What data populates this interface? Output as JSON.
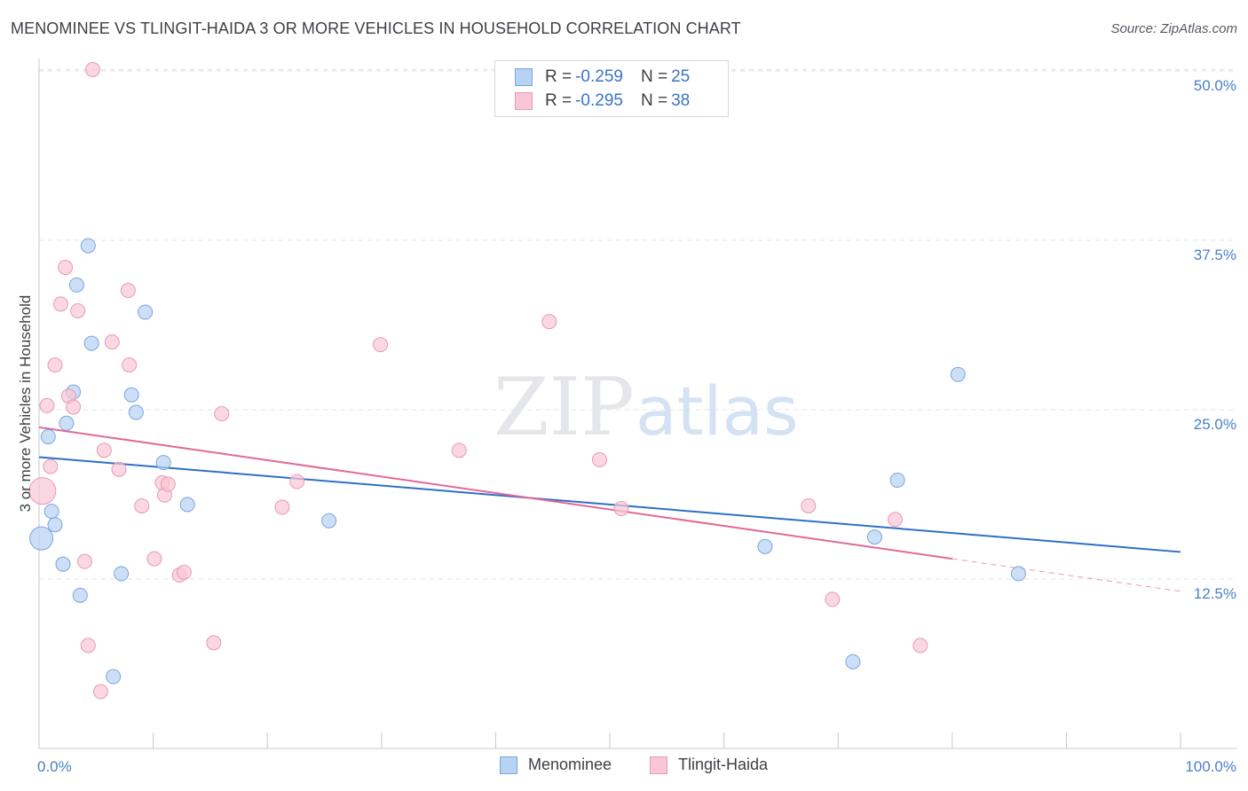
{
  "title": "MENOMINEE VS TLINGIT-HAIDA 3 OR MORE VEHICLES IN HOUSEHOLD CORRELATION CHART",
  "source": "Source: ZipAtlas.com",
  "watermark": {
    "zip": "ZIP",
    "atlas": "atlas"
  },
  "colors": {
    "blue_fill": "#b8d2f4",
    "blue_stroke": "#7aa6dc",
    "blue_line": "#2f6fc8",
    "pink_fill": "#f8c6d5",
    "pink_stroke": "#e99ab2",
    "pink_line": "#e06a96",
    "grid": "#dfe3e8",
    "axis_text": "#4a7fc8"
  },
  "legend": {
    "menominee": {
      "r_label": "R = ",
      "r_value": "-0.259",
      "n_label": "N = ",
      "n_value": "25"
    },
    "tlingit": {
      "r_label": "R = ",
      "r_value": "-0.295",
      "n_label": "N = ",
      "n_value": "38"
    }
  },
  "bottom_legend": {
    "menominee": "Menominee",
    "tlingit": "Tlingit-Haida"
  },
  "chart_data": {
    "type": "scatter",
    "title": "MENOMINEE VS TLINGIT-HAIDA 3 OR MORE VEHICLES IN HOUSEHOLD CORRELATION CHART",
    "xlabel": "",
    "ylabel": "3 or more Vehicles in Household",
    "xlim": [
      0,
      100
    ],
    "ylim": [
      0,
      50
    ],
    "x_tick_labels": [
      "0.0%",
      "100.0%"
    ],
    "y_ticks": [
      12.5,
      25.0,
      37.5,
      50.0
    ],
    "y_tick_labels": [
      "12.5%",
      "25.0%",
      "37.5%",
      "50.0%"
    ],
    "grid": true,
    "series": [
      {
        "name": "Menominee",
        "color": "#b8d2f4",
        "points": [
          {
            "x": 0.2,
            "y": 15.5,
            "size": 13
          },
          {
            "x": 0.8,
            "y": 23.0,
            "size": 8
          },
          {
            "x": 1.1,
            "y": 17.5,
            "size": 8
          },
          {
            "x": 1.4,
            "y": 16.5,
            "size": 8
          },
          {
            "x": 2.1,
            "y": 13.6,
            "size": 8
          },
          {
            "x": 2.4,
            "y": 24.0,
            "size": 8
          },
          {
            "x": 3.0,
            "y": 26.3,
            "size": 8
          },
          {
            "x": 3.3,
            "y": 34.2,
            "size": 8
          },
          {
            "x": 3.6,
            "y": 11.3,
            "size": 8
          },
          {
            "x": 4.3,
            "y": 37.1,
            "size": 8
          },
          {
            "x": 4.6,
            "y": 29.9,
            "size": 8
          },
          {
            "x": 6.5,
            "y": 5.3,
            "size": 8
          },
          {
            "x": 7.2,
            "y": 12.9,
            "size": 8
          },
          {
            "x": 8.1,
            "y": 26.1,
            "size": 8
          },
          {
            "x": 8.5,
            "y": 24.8,
            "size": 8
          },
          {
            "x": 9.3,
            "y": 32.2,
            "size": 8
          },
          {
            "x": 10.9,
            "y": 21.1,
            "size": 8
          },
          {
            "x": 13.0,
            "y": 18.0,
            "size": 8
          },
          {
            "x": 25.4,
            "y": 16.8,
            "size": 8
          },
          {
            "x": 63.6,
            "y": 14.9,
            "size": 8
          },
          {
            "x": 71.3,
            "y": 6.4,
            "size": 8
          },
          {
            "x": 73.2,
            "y": 15.6,
            "size": 8
          },
          {
            "x": 75.2,
            "y": 19.8,
            "size": 8
          },
          {
            "x": 80.5,
            "y": 27.6,
            "size": 8
          },
          {
            "x": 85.8,
            "y": 12.9,
            "size": 8
          }
        ]
      },
      {
        "name": "Tlingit-Haida",
        "color": "#f8c6d5",
        "points": [
          {
            "x": 0.3,
            "y": 19.0,
            "size": 15
          },
          {
            "x": 0.7,
            "y": 25.3,
            "size": 8
          },
          {
            "x": 1.0,
            "y": 20.8,
            "size": 8
          },
          {
            "x": 1.4,
            "y": 28.3,
            "size": 8
          },
          {
            "x": 1.9,
            "y": 32.8,
            "size": 8
          },
          {
            "x": 2.3,
            "y": 35.5,
            "size": 8
          },
          {
            "x": 2.6,
            "y": 26.0,
            "size": 8
          },
          {
            "x": 3.0,
            "y": 25.2,
            "size": 8
          },
          {
            "x": 3.4,
            "y": 32.3,
            "size": 8
          },
          {
            "x": 4.0,
            "y": 13.8,
            "size": 8
          },
          {
            "x": 4.3,
            "y": 7.6,
            "size": 8
          },
          {
            "x": 4.7,
            "y": 50.1,
            "size": 8
          },
          {
            "x": 5.4,
            "y": 4.2,
            "size": 8
          },
          {
            "x": 5.7,
            "y": 22.0,
            "size": 8
          },
          {
            "x": 6.4,
            "y": 30.0,
            "size": 8
          },
          {
            "x": 7.0,
            "y": 20.6,
            "size": 8
          },
          {
            "x": 7.8,
            "y": 33.8,
            "size": 8
          },
          {
            "x": 7.9,
            "y": 28.3,
            "size": 8
          },
          {
            "x": 9.0,
            "y": 17.9,
            "size": 8
          },
          {
            "x": 10.1,
            "y": 14.0,
            "size": 8
          },
          {
            "x": 10.8,
            "y": 19.6,
            "size": 8
          },
          {
            "x": 11.0,
            "y": 18.7,
            "size": 8
          },
          {
            "x": 11.3,
            "y": 19.5,
            "size": 8
          },
          {
            "x": 12.3,
            "y": 12.8,
            "size": 8
          },
          {
            "x": 12.7,
            "y": 13.0,
            "size": 8
          },
          {
            "x": 15.3,
            "y": 7.8,
            "size": 8
          },
          {
            "x": 16.0,
            "y": 24.7,
            "size": 8
          },
          {
            "x": 21.3,
            "y": 17.8,
            "size": 8
          },
          {
            "x": 22.6,
            "y": 19.7,
            "size": 8
          },
          {
            "x": 29.9,
            "y": 29.8,
            "size": 8
          },
          {
            "x": 36.8,
            "y": 22.0,
            "size": 8
          },
          {
            "x": 44.7,
            "y": 31.5,
            "size": 8
          },
          {
            "x": 49.1,
            "y": 21.3,
            "size": 8
          },
          {
            "x": 51.0,
            "y": 17.7,
            "size": 8
          },
          {
            "x": 67.4,
            "y": 17.9,
            "size": 8
          },
          {
            "x": 69.5,
            "y": 11.0,
            "size": 8
          },
          {
            "x": 75.0,
            "y": 16.9,
            "size": 8
          },
          {
            "x": 77.2,
            "y": 7.6,
            "size": 8
          }
        ]
      }
    ],
    "trend_lines": [
      {
        "series": "Menominee",
        "x0": 0,
        "y0": 21.5,
        "x1": 100,
        "y1": 14.5,
        "style": "solid"
      },
      {
        "series": "Tlingit-Haida",
        "x0": 0,
        "y0": 23.7,
        "x1": 80,
        "y1": 14.0,
        "style": "solid"
      },
      {
        "series": "Tlingit-Haida",
        "x0": 80,
        "y0": 14.0,
        "x1": 100,
        "y1": 11.6,
        "style": "dashed"
      }
    ]
  }
}
